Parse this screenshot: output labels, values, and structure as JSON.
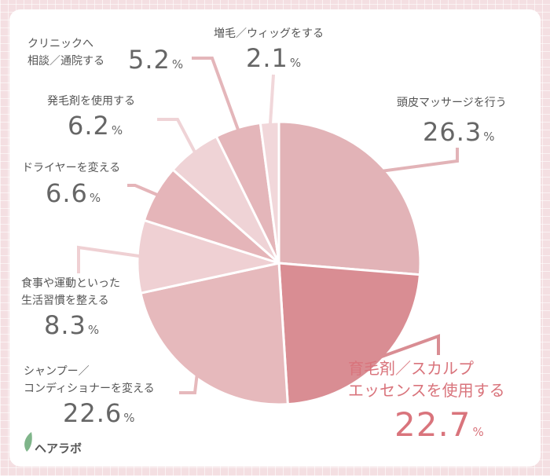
{
  "chart_data": {
    "type": "pie",
    "categories": [
      "頭皮マッサージを行う",
      "育毛剤／スカルプ\nエッセンスを使用する",
      "シャンプー／\nコンディショナーを変える",
      "食事や運動といった\n生活習慣を整える",
      "ドライヤーを変える",
      "発毛剤を使用する",
      "クリニックへ\n相談／通院する",
      "増毛／ウィッグをする"
    ],
    "values": [
      26.3,
      22.7,
      22.6,
      8.3,
      6.6,
      6.2,
      5.2,
      2.1
    ],
    "value_labels": [
      "26.3%",
      "22.7%",
      "22.6%",
      "8.3%",
      "6.6%",
      "6.2%",
      "5.2%",
      "2.1%"
    ],
    "colors": [
      "#e2b3b7",
      "#d98d93",
      "#e6b9bc",
      "#efd0d3",
      "#e5b5b9",
      "#efd3d6",
      "#e4b6ba",
      "#f1d7da"
    ],
    "highlight": 1,
    "highlight_color": "#d9747c"
  },
  "brand": "ヘアラボ"
}
